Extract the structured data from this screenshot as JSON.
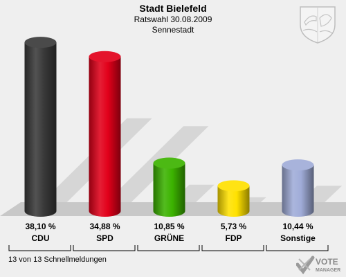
{
  "header": {
    "title": "Stadt Bielefeld",
    "subtitle1": "Ratswahl 30.08.2009",
    "subtitle2": "Sennestadt"
  },
  "footer": {
    "note": "13 von 13 Schnellmeldungen"
  },
  "brand": {
    "line1": "VOTE",
    "line2": "MANAGER"
  },
  "crest": {
    "icon": "coat-of-arms-icon"
  },
  "colors": {
    "background": "#efefef",
    "floor": "#c8c8c8"
  },
  "chart_data": {
    "type": "bar",
    "categories": [
      "CDU",
      "SPD",
      "GRÜNE",
      "FDP",
      "Sonstige"
    ],
    "values": [
      38.1,
      34.88,
      10.85,
      5.73,
      10.44
    ],
    "value_labels": [
      "38,10 %",
      "34,88 %",
      "10,85 %",
      "5,73 %",
      "10,44 %"
    ],
    "colors": [
      "#3a3a3a",
      "#e2001a",
      "#3cb300",
      "#ffe100",
      "#a0acd8"
    ],
    "unit": "%",
    "ylim": [
      0,
      40
    ],
    "grid": false,
    "legend": "none",
    "style": "3d-cylinder"
  }
}
